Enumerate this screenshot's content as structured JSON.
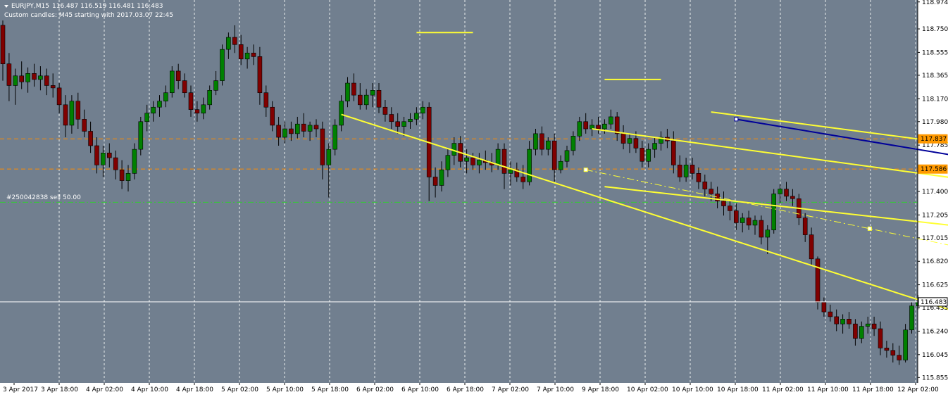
{
  "header": {
    "symbol": "EURJPY,M15",
    "ohlc": "116.487 116.519 116.481 116.483",
    "subtitle": "Custom candles: M45 starting with 2017.03.07 22:45"
  },
  "order_label": "#250042838 sell 50.00",
  "colors": {
    "background": "#717f8f",
    "grid": "#ffffff",
    "bull_candle": "#008000",
    "bear_candle": "#800000",
    "wick": "#000000",
    "channel": "#ffff33",
    "trend_blue": "#000099",
    "level_orange": "#ff8c00",
    "order_line": "#33cc33",
    "price_tag": "#ff9900"
  },
  "chart_data": {
    "type": "candlestick",
    "symbol": "EURJPY",
    "timeframe": "M15 (custom M45 candles)",
    "ylim": [
      115.81,
      118.99
    ],
    "y_ticks": [
      "118.974",
      "118.750",
      "118.555",
      "118.365",
      "118.170",
      "117.980",
      "117.785",
      "117.590",
      "117.400",
      "117.205",
      "117.015",
      "116.820",
      "116.625",
      "116.435",
      "116.240",
      "116.045",
      "115.855"
    ],
    "x_ticks": [
      "3 Apr 2017",
      "3 Apr 18:00",
      "4 Apr 02:00",
      "4 Apr 10:00",
      "4 Apr 18:00",
      "5 Apr 02:00",
      "5 Apr 10:00",
      "5 Apr 18:00",
      "6 Apr 02:00",
      "6 Apr 10:00",
      "6 Apr 18:00",
      "7 Apr 02:00",
      "7 Apr 10:00",
      "9 Apr 18:00",
      "10 Apr 02:00",
      "10 Apr 10:00",
      "10 Apr 18:00",
      "11 Apr 02:00",
      "11 Apr 10:00",
      "11 Apr 18:00",
      "12 Apr 02:00"
    ],
    "current_price": "116.483",
    "horizontal_levels": [
      {
        "price": 117.837,
        "label": "117.837",
        "style": "dashed",
        "color": "#ff8c00"
      },
      {
        "price": 117.586,
        "label": "117.586",
        "style": "dashed",
        "color": "#ff8c00"
      },
      {
        "price": 117.31,
        "label": "",
        "style": "dash-dot",
        "color": "#33cc33"
      }
    ],
    "trend_lines": [
      {
        "kind": "channel",
        "color": "#ffff33",
        "from": [
          54,
          118.04
        ],
        "to": [
          185,
          115.85
        ]
      },
      {
        "kind": "channel",
        "color": "#ffff33",
        "from": [
          94,
          117.92
        ],
        "to": [
          244,
          116.86
        ]
      },
      {
        "kind": "channel",
        "color": "#ffff33",
        "from": [
          96,
          117.44
        ],
        "to": [
          244,
          116.58
        ]
      },
      {
        "kind": "channel",
        "color": "#ffff33",
        "from": [
          113,
          118.06
        ],
        "to": [
          244,
          117.17
        ]
      },
      {
        "kind": "dashed",
        "color": "#ffff33",
        "from": [
          93,
          117.58
        ],
        "to": [
          244,
          115.95
        ]
      },
      {
        "kind": "trend",
        "color": "#000099",
        "from": [
          117,
          118.0
        ],
        "to": [
          244,
          116.9
        ]
      },
      {
        "kind": "marker",
        "color": "#ffff33",
        "from": [
          66,
          118.72
        ],
        "to": [
          75,
          118.72
        ]
      },
      {
        "kind": "marker",
        "color": "#ffff33",
        "from": [
          96,
          118.33
        ],
        "to": [
          105,
          118.33
        ]
      }
    ],
    "candles": [
      {
        "o": 118.78,
        "h": 118.82,
        "l": 118.32,
        "c": 118.46
      },
      {
        "o": 118.46,
        "h": 118.55,
        "l": 118.15,
        "c": 118.28
      },
      {
        "o": 118.28,
        "h": 118.42,
        "l": 118.12,
        "c": 118.36
      },
      {
        "o": 118.36,
        "h": 118.48,
        "l": 118.25,
        "c": 118.31
      },
      {
        "o": 118.31,
        "h": 118.43,
        "l": 118.22,
        "c": 118.38
      },
      {
        "o": 118.38,
        "h": 118.46,
        "l": 118.27,
        "c": 118.33
      },
      {
        "o": 118.33,
        "h": 118.44,
        "l": 118.24,
        "c": 118.36
      },
      {
        "o": 118.36,
        "h": 118.42,
        "l": 118.2,
        "c": 118.28
      },
      {
        "o": 118.28,
        "h": 118.38,
        "l": 118.18,
        "c": 118.26
      },
      {
        "o": 118.26,
        "h": 118.3,
        "l": 118.05,
        "c": 118.12
      },
      {
        "o": 118.12,
        "h": 118.2,
        "l": 117.85,
        "c": 117.95
      },
      {
        "o": 117.95,
        "h": 118.2,
        "l": 117.88,
        "c": 118.15
      },
      {
        "o": 118.15,
        "h": 118.22,
        "l": 117.92,
        "c": 118.0
      },
      {
        "o": 118.0,
        "h": 118.08,
        "l": 117.85,
        "c": 117.9
      },
      {
        "o": 117.9,
        "h": 117.98,
        "l": 117.72,
        "c": 117.78
      },
      {
        "o": 117.78,
        "h": 117.85,
        "l": 117.55,
        "c": 117.62
      },
      {
        "o": 117.62,
        "h": 117.78,
        "l": 117.52,
        "c": 117.72
      },
      {
        "o": 117.72,
        "h": 117.8,
        "l": 117.6,
        "c": 117.68
      },
      {
        "o": 117.68,
        "h": 117.74,
        "l": 117.5,
        "c": 117.58
      },
      {
        "o": 117.58,
        "h": 117.66,
        "l": 117.42,
        "c": 117.49
      },
      {
        "o": 117.49,
        "h": 117.62,
        "l": 117.4,
        "c": 117.55
      },
      {
        "o": 117.55,
        "h": 117.8,
        "l": 117.5,
        "c": 117.75
      },
      {
        "o": 117.75,
        "h": 118.02,
        "l": 117.7,
        "c": 117.98
      },
      {
        "o": 117.98,
        "h": 118.12,
        "l": 117.9,
        "c": 118.05
      },
      {
        "o": 118.05,
        "h": 118.15,
        "l": 117.98,
        "c": 118.1
      },
      {
        "o": 118.1,
        "h": 118.2,
        "l": 118.02,
        "c": 118.15
      },
      {
        "o": 118.15,
        "h": 118.28,
        "l": 118.1,
        "c": 118.22
      },
      {
        "o": 118.22,
        "h": 118.44,
        "l": 118.18,
        "c": 118.4
      },
      {
        "o": 118.4,
        "h": 118.46,
        "l": 118.25,
        "c": 118.32
      },
      {
        "o": 118.32,
        "h": 118.38,
        "l": 118.18,
        "c": 118.22
      },
      {
        "o": 118.22,
        "h": 118.28,
        "l": 118.02,
        "c": 118.08
      },
      {
        "o": 118.08,
        "h": 118.15,
        "l": 117.98,
        "c": 118.05
      },
      {
        "o": 118.05,
        "h": 118.18,
        "l": 118.0,
        "c": 118.12
      },
      {
        "o": 118.12,
        "h": 118.28,
        "l": 118.08,
        "c": 118.24
      },
      {
        "o": 118.24,
        "h": 118.4,
        "l": 118.2,
        "c": 118.32
      },
      {
        "o": 118.32,
        "h": 118.62,
        "l": 118.28,
        "c": 118.58
      },
      {
        "o": 118.58,
        "h": 118.72,
        "l": 118.5,
        "c": 118.68
      },
      {
        "o": 118.68,
        "h": 118.78,
        "l": 118.55,
        "c": 118.62
      },
      {
        "o": 118.62,
        "h": 118.7,
        "l": 118.45,
        "c": 118.5
      },
      {
        "o": 118.5,
        "h": 118.6,
        "l": 118.42,
        "c": 118.55
      },
      {
        "o": 118.55,
        "h": 118.62,
        "l": 118.45,
        "c": 118.52
      },
      {
        "o": 118.52,
        "h": 118.6,
        "l": 118.12,
        "c": 118.22
      },
      {
        "o": 118.22,
        "h": 118.28,
        "l": 118.02,
        "c": 118.1
      },
      {
        "o": 118.1,
        "h": 118.15,
        "l": 117.9,
        "c": 117.95
      },
      {
        "o": 117.95,
        "h": 118.02,
        "l": 117.78,
        "c": 117.85
      },
      {
        "o": 117.85,
        "h": 117.98,
        "l": 117.8,
        "c": 117.92
      },
      {
        "o": 117.92,
        "h": 117.98,
        "l": 117.82,
        "c": 117.88
      },
      {
        "o": 117.88,
        "h": 118.02,
        "l": 117.84,
        "c": 117.96
      },
      {
        "o": 117.96,
        "h": 118.05,
        "l": 117.85,
        "c": 117.9
      },
      {
        "o": 117.9,
        "h": 117.98,
        "l": 117.82,
        "c": 117.95
      },
      {
        "o": 117.95,
        "h": 118.0,
        "l": 117.85,
        "c": 117.92
      },
      {
        "o": 117.92,
        "h": 117.98,
        "l": 117.5,
        "c": 117.62
      },
      {
        "o": 117.62,
        "h": 117.8,
        "l": 117.35,
        "c": 117.75
      },
      {
        "o": 117.75,
        "h": 118.0,
        "l": 117.7,
        "c": 117.95
      },
      {
        "o": 117.95,
        "h": 118.2,
        "l": 117.9,
        "c": 118.15
      },
      {
        "o": 118.15,
        "h": 118.35,
        "l": 118.1,
        "c": 118.3
      },
      {
        "o": 118.3,
        "h": 118.38,
        "l": 118.15,
        "c": 118.2
      },
      {
        "o": 118.2,
        "h": 118.3,
        "l": 118.08,
        "c": 118.12
      },
      {
        "o": 118.12,
        "h": 118.25,
        "l": 118.08,
        "c": 118.2
      },
      {
        "o": 118.2,
        "h": 118.3,
        "l": 118.1,
        "c": 118.24
      },
      {
        "o": 118.24,
        "h": 118.3,
        "l": 118.05,
        "c": 118.1
      },
      {
        "o": 118.1,
        "h": 118.16,
        "l": 117.98,
        "c": 118.04
      },
      {
        "o": 118.04,
        "h": 118.1,
        "l": 117.92,
        "c": 117.98
      },
      {
        "o": 117.98,
        "h": 118.05,
        "l": 117.88,
        "c": 117.94
      },
      {
        "o": 117.94,
        "h": 118.02,
        "l": 117.86,
        "c": 117.98
      },
      {
        "o": 117.98,
        "h": 118.05,
        "l": 117.92,
        "c": 118.0
      },
      {
        "o": 118.0,
        "h": 118.1,
        "l": 117.95,
        "c": 118.05
      },
      {
        "o": 118.05,
        "h": 118.15,
        "l": 118.0,
        "c": 118.1
      },
      {
        "o": 118.1,
        "h": 118.14,
        "l": 117.32,
        "c": 117.52
      },
      {
        "o": 117.52,
        "h": 117.6,
        "l": 117.35,
        "c": 117.45
      },
      {
        "o": 117.45,
        "h": 117.65,
        "l": 117.4,
        "c": 117.58
      },
      {
        "o": 117.58,
        "h": 117.75,
        "l": 117.52,
        "c": 117.7
      },
      {
        "o": 117.7,
        "h": 117.85,
        "l": 117.62,
        "c": 117.8
      },
      {
        "o": 117.8,
        "h": 117.86,
        "l": 117.6,
        "c": 117.65
      },
      {
        "o": 117.65,
        "h": 117.75,
        "l": 117.55,
        "c": 117.68
      },
      {
        "o": 117.68,
        "h": 117.72,
        "l": 117.58,
        "c": 117.62
      },
      {
        "o": 117.62,
        "h": 117.72,
        "l": 117.55,
        "c": 117.66
      },
      {
        "o": 117.66,
        "h": 117.74,
        "l": 117.58,
        "c": 117.64
      },
      {
        "o": 117.64,
        "h": 117.72,
        "l": 117.56,
        "c": 117.62
      },
      {
        "o": 117.62,
        "h": 117.8,
        "l": 117.58,
        "c": 117.75
      },
      {
        "o": 117.75,
        "h": 117.8,
        "l": 117.42,
        "c": 117.55
      },
      {
        "o": 117.55,
        "h": 117.65,
        "l": 117.45,
        "c": 117.58
      },
      {
        "o": 117.58,
        "h": 117.64,
        "l": 117.48,
        "c": 117.52
      },
      {
        "o": 117.52,
        "h": 117.62,
        "l": 117.42,
        "c": 117.48
      },
      {
        "o": 117.48,
        "h": 117.82,
        "l": 117.45,
        "c": 117.75
      },
      {
        "o": 117.75,
        "h": 117.92,
        "l": 117.7,
        "c": 117.88
      },
      {
        "o": 117.88,
        "h": 117.94,
        "l": 117.7,
        "c": 117.75
      },
      {
        "o": 117.75,
        "h": 117.85,
        "l": 117.7,
        "c": 117.82
      },
      {
        "o": 117.82,
        "h": 117.88,
        "l": 117.48,
        "c": 117.58
      },
      {
        "o": 117.58,
        "h": 117.7,
        "l": 117.55,
        "c": 117.65
      },
      {
        "o": 117.65,
        "h": 117.78,
        "l": 117.6,
        "c": 117.74
      },
      {
        "o": 117.74,
        "h": 117.9,
        "l": 117.7,
        "c": 117.86
      },
      {
        "o": 117.86,
        "h": 118.02,
        "l": 117.82,
        "c": 117.98
      },
      {
        "o": 117.98,
        "h": 118.05,
        "l": 117.88,
        "c": 117.92
      },
      {
        "o": 117.92,
        "h": 118.0,
        "l": 117.86,
        "c": 117.95
      },
      {
        "o": 117.95,
        "h": 118.02,
        "l": 117.88,
        "c": 117.92
      },
      {
        "o": 117.92,
        "h": 118.0,
        "l": 117.88,
        "c": 117.96
      },
      {
        "o": 117.96,
        "h": 118.08,
        "l": 117.92,
        "c": 118.02
      },
      {
        "o": 118.02,
        "h": 118.06,
        "l": 117.82,
        "c": 117.88
      },
      {
        "o": 117.88,
        "h": 117.95,
        "l": 117.75,
        "c": 117.8
      },
      {
        "o": 117.8,
        "h": 117.88,
        "l": 117.72,
        "c": 117.84
      },
      {
        "o": 117.84,
        "h": 117.9,
        "l": 117.72,
        "c": 117.76
      },
      {
        "o": 117.76,
        "h": 117.82,
        "l": 117.6,
        "c": 117.65
      },
      {
        "o": 117.65,
        "h": 117.8,
        "l": 117.6,
        "c": 117.75
      },
      {
        "o": 117.75,
        "h": 117.85,
        "l": 117.68,
        "c": 117.8
      },
      {
        "o": 117.8,
        "h": 117.9,
        "l": 117.74,
        "c": 117.85
      },
      {
        "o": 117.85,
        "h": 117.92,
        "l": 117.76,
        "c": 117.82
      },
      {
        "o": 117.82,
        "h": 117.9,
        "l": 117.55,
        "c": 117.62
      },
      {
        "o": 117.62,
        "h": 117.7,
        "l": 117.48,
        "c": 117.52
      },
      {
        "o": 117.52,
        "h": 117.68,
        "l": 117.48,
        "c": 117.62
      },
      {
        "o": 117.62,
        "h": 117.68,
        "l": 117.5,
        "c": 117.55
      },
      {
        "o": 117.55,
        "h": 117.6,
        "l": 117.42,
        "c": 117.48
      },
      {
        "o": 117.48,
        "h": 117.54,
        "l": 117.36,
        "c": 117.42
      },
      {
        "o": 117.42,
        "h": 117.48,
        "l": 117.32,
        "c": 117.38
      },
      {
        "o": 117.38,
        "h": 117.44,
        "l": 117.26,
        "c": 117.32
      },
      {
        "o": 117.32,
        "h": 117.4,
        "l": 117.2,
        "c": 117.28
      },
      {
        "o": 117.28,
        "h": 117.34,
        "l": 117.16,
        "c": 117.24
      },
      {
        "o": 117.24,
        "h": 117.3,
        "l": 117.08,
        "c": 117.14
      },
      {
        "o": 117.14,
        "h": 117.22,
        "l": 117.06,
        "c": 117.18
      },
      {
        "o": 117.18,
        "h": 117.24,
        "l": 117.08,
        "c": 117.12
      },
      {
        "o": 117.12,
        "h": 117.2,
        "l": 117.04,
        "c": 117.16
      },
      {
        "o": 117.16,
        "h": 117.2,
        "l": 116.96,
        "c": 117.02
      },
      {
        "o": 117.02,
        "h": 117.12,
        "l": 116.88,
        "c": 117.08
      },
      {
        "o": 117.08,
        "h": 117.42,
        "l": 117.05,
        "c": 117.38
      },
      {
        "o": 117.38,
        "h": 117.46,
        "l": 117.3,
        "c": 117.42
      },
      {
        "o": 117.42,
        "h": 117.48,
        "l": 117.32,
        "c": 117.36
      },
      {
        "o": 117.36,
        "h": 117.42,
        "l": 117.28,
        "c": 117.34
      },
      {
        "o": 117.34,
        "h": 117.38,
        "l": 117.12,
        "c": 117.18
      },
      {
        "o": 117.18,
        "h": 117.22,
        "l": 116.98,
        "c": 117.04
      },
      {
        "o": 117.04,
        "h": 117.1,
        "l": 116.78,
        "c": 116.84
      },
      {
        "o": 116.84,
        "h": 116.86,
        "l": 116.42,
        "c": 116.48
      },
      {
        "o": 116.48,
        "h": 116.52,
        "l": 116.36,
        "c": 116.4
      },
      {
        "o": 116.4,
        "h": 116.46,
        "l": 116.32,
        "c": 116.36
      },
      {
        "o": 116.36,
        "h": 116.42,
        "l": 116.24,
        "c": 116.3
      },
      {
        "o": 116.3,
        "h": 116.38,
        "l": 116.22,
        "c": 116.34
      },
      {
        "o": 116.34,
        "h": 116.4,
        "l": 116.26,
        "c": 116.3
      },
      {
        "o": 116.3,
        "h": 116.34,
        "l": 116.12,
        "c": 116.18
      },
      {
        "o": 116.18,
        "h": 116.32,
        "l": 116.14,
        "c": 116.28
      },
      {
        "o": 116.28,
        "h": 116.36,
        "l": 116.22,
        "c": 116.3
      },
      {
        "o": 116.3,
        "h": 116.36,
        "l": 116.2,
        "c": 116.26
      },
      {
        "o": 116.26,
        "h": 116.32,
        "l": 116.04,
        "c": 116.1
      },
      {
        "o": 116.1,
        "h": 116.16,
        "l": 116.02,
        "c": 116.08
      },
      {
        "o": 116.08,
        "h": 116.14,
        "l": 115.98,
        "c": 116.04
      },
      {
        "o": 116.04,
        "h": 116.12,
        "l": 115.96,
        "c": 116.0
      },
      {
        "o": 116.0,
        "h": 116.3,
        "l": 115.98,
        "c": 116.25
      },
      {
        "o": 116.25,
        "h": 116.48,
        "l": 116.22,
        "c": 116.45
      },
      {
        "o": 116.45,
        "h": 116.54,
        "l": 116.42,
        "c": 116.483
      }
    ]
  }
}
